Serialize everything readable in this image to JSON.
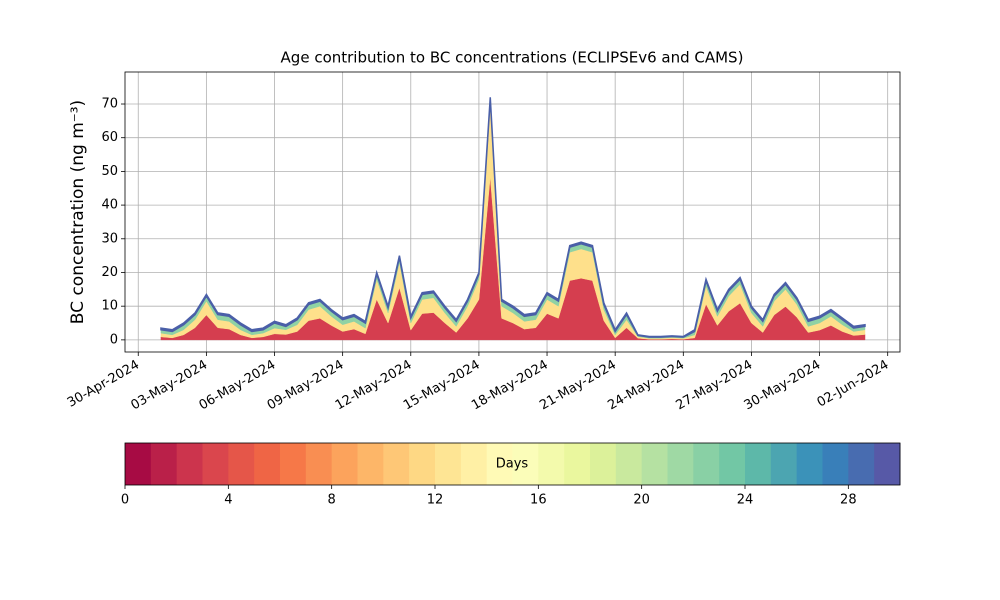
{
  "chart_data": {
    "type": "stacked_area",
    "title": "Age contribution to BC concentrations (ECLIPSEv6 and CAMS)",
    "y_label": "BC concentration (ng m⁻³)",
    "x": [
      "2024-05-01 00:00",
      "2024-05-01 12:00",
      "2024-05-02 00:00",
      "2024-05-02 12:00",
      "2024-05-03 00:00",
      "2024-05-03 12:00",
      "2024-05-04 00:00",
      "2024-05-04 12:00",
      "2024-05-05 00:00",
      "2024-05-05 12:00",
      "2024-05-06 00:00",
      "2024-05-06 12:00",
      "2024-05-07 00:00",
      "2024-05-07 12:00",
      "2024-05-08 00:00",
      "2024-05-08 12:00",
      "2024-05-09 00:00",
      "2024-05-09 12:00",
      "2024-05-10 00:00",
      "2024-05-10 12:00",
      "2024-05-11 00:00",
      "2024-05-11 12:00",
      "2024-05-12 00:00",
      "2024-05-12 12:00",
      "2024-05-13 00:00",
      "2024-05-13 12:00",
      "2024-05-14 00:00",
      "2024-05-14 12:00",
      "2024-05-15 00:00",
      "2024-05-15 12:00",
      "2024-05-16 00:00",
      "2024-05-16 12:00",
      "2024-05-17 00:00",
      "2024-05-17 12:00",
      "2024-05-18 00:00",
      "2024-05-18 12:00",
      "2024-05-19 00:00",
      "2024-05-19 12:00",
      "2024-05-20 00:00",
      "2024-05-20 12:00",
      "2024-05-21 00:00",
      "2024-05-21 12:00",
      "2024-05-22 00:00",
      "2024-05-22 12:00",
      "2024-05-23 00:00",
      "2024-05-23 12:00",
      "2024-05-24 00:00",
      "2024-05-24 12:00",
      "2024-05-25 00:00",
      "2024-05-25 12:00",
      "2024-05-26 00:00",
      "2024-05-26 12:00",
      "2024-05-27 00:00",
      "2024-05-27 12:00",
      "2024-05-28 00:00",
      "2024-05-28 12:00",
      "2024-05-29 00:00",
      "2024-05-29 12:00",
      "2024-05-30 00:00",
      "2024-05-30 12:00",
      "2024-05-31 00:00",
      "2024-05-31 12:00",
      "2024-06-01 00:00"
    ],
    "series": [
      {
        "color": "#d53e4f",
        "values": [
          0.9,
          0.6,
          1.5,
          3.6,
          7.4,
          3.6,
          3.2,
          1.5,
          0.6,
          0.9,
          1.8,
          1.6,
          2.5,
          5.7,
          6.4,
          4.3,
          2.5,
          3.2,
          1.8,
          12,
          5,
          15.5,
          2.9,
          7.8,
          8.1,
          5,
          2.2,
          6.4,
          12,
          48.4,
          6.4,
          5,
          3.2,
          3.6,
          7.8,
          6.4,
          17.6,
          18.3,
          17.6,
          5.7,
          0.6,
          3.6,
          0.5,
          0.2,
          0.2,
          0.3,
          0.2,
          0.6,
          10.6,
          4.3,
          8.5,
          10.9,
          5,
          2.2,
          7.4,
          9.9,
          6.7,
          2.2,
          2.9,
          4.3,
          2.5,
          1.3,
          1.6
        ]
      },
      {
        "color": "#fee08b",
        "values": [
          1.1,
          0.9,
          1.5,
          2.4,
          4.1,
          2.4,
          2.3,
          1.5,
          0.9,
          1.1,
          1.7,
          1.4,
          2,
          3.3,
          3.6,
          2.7,
          2,
          2.3,
          1.7,
          6,
          3,
          7.5,
          2.1,
          4.2,
          4.4,
          3,
          1.8,
          3.6,
          6,
          21.6,
          3.6,
          3,
          2.3,
          2.4,
          4.2,
          3.6,
          8.4,
          8.7,
          8.4,
          3.3,
          0.9,
          2.4,
          0.5,
          0.3,
          0.3,
          0.4,
          0.3,
          0.9,
          5.4,
          2.7,
          4.5,
          5.6,
          3,
          1.8,
          4.1,
          5.1,
          3.8,
          1.8,
          2.1,
          2.7,
          2,
          1.2,
          1.4
        ]
      },
      {
        "color": "#8fd2a4",
        "values": [
          1,
          1,
          1.5,
          1.5,
          1.5,
          1.5,
          1.5,
          1.5,
          1,
          1,
          1.5,
          1,
          1.5,
          1.5,
          1.5,
          1.5,
          1.5,
          1.5,
          1.5,
          1.5,
          1.5,
          1.5,
          1.5,
          1.5,
          1.5,
          1.5,
          1.5,
          1.5,
          1.5,
          1.5,
          1.5,
          1.5,
          1.5,
          1.5,
          1.5,
          1.5,
          1.5,
          1.5,
          1.5,
          1.5,
          1,
          1.5,
          0.3,
          0.3,
          0.3,
          0.3,
          0.3,
          1,
          1.5,
          1.5,
          1.5,
          1.5,
          1.5,
          1.5,
          1.5,
          1.5,
          1.5,
          1.5,
          1.5,
          1.5,
          1.5,
          1,
          1
        ]
      },
      {
        "color": "#4a5fa8",
        "values": [
          0.5,
          0.5,
          0.5,
          0.5,
          0.5,
          0.5,
          0.5,
          0.5,
          0.5,
          0.5,
          0.5,
          0.5,
          0.5,
          0.5,
          0.5,
          0.5,
          0.5,
          0.5,
          0.5,
          0.5,
          0.5,
          0.5,
          0.5,
          0.5,
          0.5,
          0.5,
          0.5,
          0.5,
          0.5,
          0.5,
          0.5,
          0.5,
          0.5,
          0.5,
          0.5,
          0.5,
          0.5,
          0.5,
          0.5,
          0.5,
          0.5,
          0.5,
          0.2,
          0.2,
          0.2,
          0.2,
          0.2,
          0.5,
          0.5,
          0.5,
          0.5,
          0.5,
          0.5,
          0.5,
          0.5,
          0.5,
          0.5,
          0.5,
          0.5,
          0.5,
          0.5,
          0.5,
          0.5
        ]
      }
    ],
    "xlim": [
      "2024-04-29 10:00",
      "2024-06-02 13:00"
    ],
    "xticks": [
      {
        "value": "2024-04-30",
        "label": "30-Apr-2024"
      },
      {
        "value": "2024-05-03",
        "label": "03-May-2024"
      },
      {
        "value": "2024-05-06",
        "label": "06-May-2024"
      },
      {
        "value": "2024-05-09",
        "label": "09-May-2024"
      },
      {
        "value": "2024-05-12",
        "label": "12-May-2024"
      },
      {
        "value": "2024-05-15",
        "label": "15-May-2024"
      },
      {
        "value": "2024-05-18",
        "label": "18-May-2024"
      },
      {
        "value": "2024-05-21",
        "label": "21-May-2024"
      },
      {
        "value": "2024-05-24",
        "label": "24-May-2024"
      },
      {
        "value": "2024-05-27",
        "label": "27-May-2024"
      },
      {
        "value": "2024-05-30",
        "label": "30-May-2024"
      },
      {
        "value": "2024-06-02",
        "label": "02-Jun-2024"
      }
    ],
    "ylim": [
      -3.6,
      79.5
    ],
    "yticks": [
      0,
      10,
      20,
      30,
      40,
      50,
      60,
      70
    ],
    "grid": true,
    "colorbar": {
      "label": "Days",
      "lim": [
        0,
        30
      ],
      "n_levels": 30,
      "ticks": [
        0,
        4,
        8,
        12,
        16,
        20,
        24,
        28
      ],
      "colormap": [
        "#9e0142",
        "#d53e4f",
        "#f46d43",
        "#fdae61",
        "#fee08b",
        "#ffffbf",
        "#e6f598",
        "#abdda4",
        "#66c2a5",
        "#3288bd",
        "#5e4fa2"
      ]
    }
  }
}
